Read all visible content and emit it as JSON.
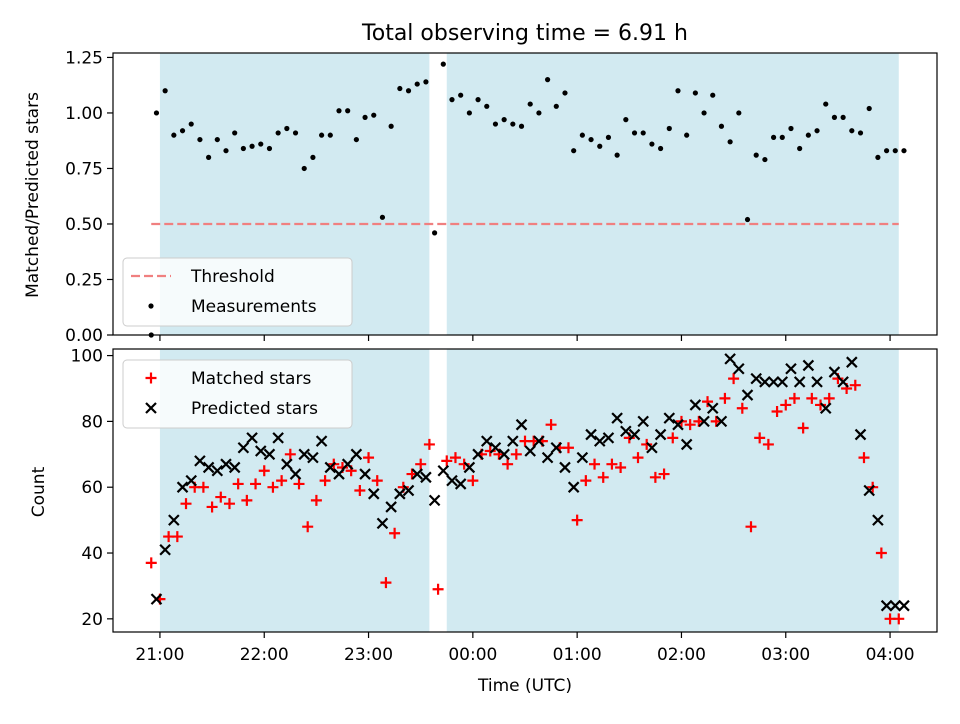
{
  "title": "Total observing time = 6.91 h",
  "colors": {
    "shade": "#add8e6",
    "threshold": "#f08080",
    "matched": "#ff0000",
    "predicted": "#000000",
    "measurement": "#000000"
  },
  "chart_data": [
    {
      "type": "scatter",
      "ylabel": "Matched/Predicted stars",
      "xlim": [
        "20:33",
        "04:27"
      ],
      "ylim": [
        0,
        1.27
      ],
      "y_ticks": [
        "0.00",
        "0.25",
        "0.50",
        "0.75",
        "1.00",
        "1.25"
      ],
      "shaded_intervals": [
        [
          "21:00",
          "23:35"
        ],
        [
          "23:45",
          "04:05"
        ]
      ],
      "threshold": {
        "name": "Threshold",
        "value": 0.5,
        "x_range": [
          "20:55",
          "04:05"
        ]
      },
      "legend": {
        "placement": "lower-left",
        "entries": [
          "Threshold",
          "Measurements"
        ]
      },
      "series": [
        {
          "name": "Measurements",
          "x": [
            "20:55",
            "20:58",
            "21:03",
            "21:08",
            "21:13",
            "21:18",
            "21:23",
            "21:28",
            "21:33",
            "21:38",
            "21:43",
            "21:48",
            "21:53",
            "21:58",
            "22:03",
            "22:08",
            "22:13",
            "22:18",
            "22:23",
            "22:28",
            "22:33",
            "22:38",
            "22:43",
            "22:48",
            "22:53",
            "22:58",
            "23:03",
            "23:08",
            "23:13",
            "23:18",
            "23:23",
            "23:28",
            "23:33",
            "23:38",
            "23:43",
            "23:48",
            "23:53",
            "23:58",
            "24:03",
            "24:08",
            "24:13",
            "24:18",
            "24:23",
            "24:28",
            "24:33",
            "24:38",
            "24:43",
            "24:48",
            "24:53",
            "24:58",
            "25:03",
            "25:08",
            "25:13",
            "25:18",
            "25:23",
            "25:28",
            "25:33",
            "25:38",
            "25:43",
            "25:48",
            "25:53",
            "25:58",
            "26:03",
            "26:08",
            "26:13",
            "26:18",
            "26:23",
            "26:28",
            "26:33",
            "26:38",
            "26:43",
            "26:48",
            "26:53",
            "26:58",
            "27:03",
            "27:08",
            "27:13",
            "27:18",
            "27:23",
            "27:28",
            "27:33",
            "27:38",
            "27:43",
            "27:48",
            "27:53",
            "27:58",
            "28:03",
            "28:08"
          ],
          "y": [
            0.0,
            1.0,
            1.1,
            0.9,
            0.92,
            0.95,
            0.88,
            0.8,
            0.88,
            0.83,
            0.91,
            0.84,
            0.85,
            0.86,
            0.84,
            0.91,
            0.93,
            0.91,
            0.75,
            0.8,
            0.9,
            0.9,
            1.01,
            1.01,
            0.88,
            0.98,
            0.99,
            0.53,
            0.94,
            1.11,
            1.1,
            1.13,
            1.14,
            0.46,
            1.22,
            1.06,
            1.08,
            1.0,
            1.06,
            1.03,
            0.95,
            0.97,
            0.95,
            0.94,
            1.04,
            1.0,
            1.15,
            1.03,
            1.09,
            0.83,
            0.9,
            0.88,
            0.85,
            0.89,
            0.81,
            0.97,
            0.91,
            0.91,
            0.86,
            0.84,
            0.93,
            1.1,
            0.9,
            1.09,
            1.0,
            1.08,
            0.94,
            0.87,
            1.0,
            0.52,
            0.81,
            0.79,
            0.89,
            0.89,
            0.93,
            0.84,
            0.9,
            0.92,
            1.04,
            0.98,
            0.98,
            0.92,
            0.91,
            1.02,
            0.8,
            0.83,
            0.83,
            0.83
          ]
        }
      ]
    },
    {
      "type": "scatter",
      "xlabel": "Time (UTC)",
      "ylabel": "Count",
      "xlim": [
        "20:33",
        "04:27"
      ],
      "ylim": [
        16,
        102
      ],
      "y_ticks": [
        "20",
        "40",
        "60",
        "80",
        "100"
      ],
      "x_ticks": [
        "21:00",
        "22:00",
        "23:00",
        "00:00",
        "01:00",
        "02:00",
        "03:00",
        "04:00"
      ],
      "shaded_intervals": [
        [
          "21:00",
          "23:35"
        ],
        [
          "23:45",
          "04:05"
        ]
      ],
      "legend": {
        "placement": "top-left",
        "entries": [
          "Matched stars",
          "Predicted stars"
        ]
      },
      "series": [
        {
          "name": "Matched stars",
          "marker": "plus",
          "x": [
            "20:55",
            "21:00",
            "21:05",
            "21:10",
            "21:15",
            "21:20",
            "21:25",
            "21:30",
            "21:35",
            "21:40",
            "21:45",
            "21:50",
            "21:55",
            "22:00",
            "22:05",
            "22:10",
            "22:15",
            "22:20",
            "22:25",
            "22:30",
            "22:35",
            "22:40",
            "22:45",
            "22:50",
            "22:55",
            "23:00",
            "23:05",
            "23:10",
            "23:15",
            "23:20",
            "23:25",
            "23:30",
            "23:35",
            "23:40",
            "23:45",
            "23:50",
            "23:55",
            "24:00",
            "24:05",
            "24:10",
            "24:15",
            "24:20",
            "24:25",
            "24:30",
            "24:35",
            "24:40",
            "24:45",
            "24:50",
            "24:55",
            "25:00",
            "25:05",
            "25:10",
            "25:15",
            "25:20",
            "25:25",
            "25:30",
            "25:35",
            "25:40",
            "25:45",
            "25:50",
            "25:55",
            "26:00",
            "26:05",
            "26:10",
            "26:15",
            "26:20",
            "26:25",
            "26:30",
            "26:35",
            "26:40",
            "26:45",
            "26:50",
            "26:55",
            "27:00",
            "27:05",
            "27:10",
            "27:15",
            "27:20",
            "27:25",
            "27:30",
            "27:35",
            "27:40",
            "27:45",
            "27:50",
            "27:55",
            "28:00",
            "28:05"
          ],
          "y": [
            37,
            26,
            45,
            45,
            55,
            60,
            60,
            54,
            57,
            55,
            61,
            56,
            61,
            65,
            60,
            62,
            70,
            61,
            48,
            56,
            62,
            67,
            66,
            65,
            59,
            69,
            62,
            31,
            46,
            60,
            64,
            67,
            73,
            29,
            68,
            69,
            67,
            62,
            70,
            71,
            70,
            67,
            70,
            74,
            74,
            74,
            79,
            72,
            72,
            50,
            62,
            67,
            63,
            67,
            66,
            75,
            69,
            73,
            63,
            64,
            75,
            80,
            79,
            80,
            86,
            80,
            87,
            93,
            84,
            48,
            75,
            73,
            83,
            85,
            87,
            78,
            87,
            85,
            87,
            93,
            90,
            91,
            69,
            60,
            40,
            20,
            20
          ]
        },
        {
          "name": "Predicted stars",
          "marker": "x",
          "x": [
            "20:58",
            "21:03",
            "21:08",
            "21:13",
            "21:18",
            "21:23",
            "21:28",
            "21:33",
            "21:38",
            "21:43",
            "21:48",
            "21:53",
            "21:58",
            "22:03",
            "22:08",
            "22:13",
            "22:18",
            "22:23",
            "22:28",
            "22:33",
            "22:38",
            "22:43",
            "22:48",
            "22:53",
            "22:58",
            "23:03",
            "23:08",
            "23:13",
            "23:18",
            "23:23",
            "23:28",
            "23:33",
            "23:38",
            "23:43",
            "23:48",
            "23:53",
            "23:58",
            "24:03",
            "24:08",
            "24:13",
            "24:18",
            "24:23",
            "24:28",
            "24:33",
            "24:38",
            "24:43",
            "24:48",
            "24:53",
            "24:58",
            "25:03",
            "25:08",
            "25:13",
            "25:18",
            "25:23",
            "25:28",
            "25:33",
            "25:38",
            "25:43",
            "25:48",
            "25:53",
            "25:58",
            "26:03",
            "26:08",
            "26:13",
            "26:18",
            "26:23",
            "26:28",
            "26:33",
            "26:38",
            "26:43",
            "26:48",
            "26:53",
            "26:58",
            "27:03",
            "27:08",
            "27:13",
            "27:18",
            "27:23",
            "27:28",
            "27:33",
            "27:38",
            "27:43",
            "27:48",
            "27:53",
            "27:58",
            "28:03",
            "28:08"
          ],
          "y": [
            26,
            41,
            50,
            60,
            62,
            68,
            66,
            65,
            67,
            66,
            72,
            75,
            71,
            70,
            75,
            67,
            64,
            70,
            69,
            74,
            66,
            64,
            67,
            70,
            64,
            58,
            49,
            54,
            58,
            59,
            64,
            63,
            56,
            65,
            62,
            61,
            66,
            70,
            74,
            72,
            70,
            74,
            79,
            71,
            74,
            69,
            72,
            66,
            60,
            69,
            76,
            74,
            75,
            81,
            77,
            76,
            80,
            72,
            76,
            81,
            79,
            73,
            85,
            80,
            84,
            80,
            99,
            96,
            88,
            93,
            92,
            92,
            92,
            96,
            92,
            97,
            92,
            84,
            95,
            92,
            98,
            76,
            59,
            50,
            24,
            24,
            24
          ]
        }
      ]
    }
  ]
}
